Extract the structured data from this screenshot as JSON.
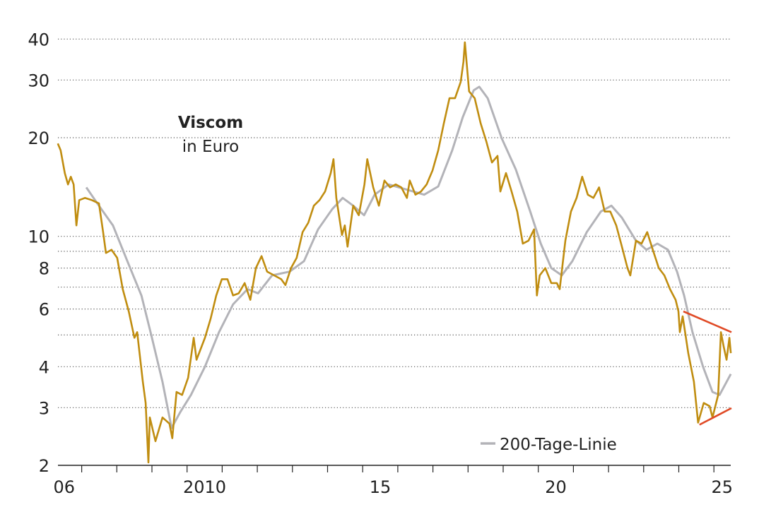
{
  "chart_data": {
    "type": "line",
    "title": "Viscom",
    "subtitle": "in Euro",
    "y_scale": "log",
    "ylim": [
      2,
      42
    ],
    "xlim": [
      2006.32,
      2025.5
    ],
    "y_ticks": [
      {
        "value": 40,
        "label": "40"
      },
      {
        "value": 30,
        "label": "30"
      },
      {
        "value": 20,
        "label": "20"
      },
      {
        "value": 10,
        "label": "10"
      },
      {
        "value": 9,
        "label": ""
      },
      {
        "value": 8,
        "label": "8"
      },
      {
        "value": 7,
        "label": ""
      },
      {
        "value": 6,
        "label": "6"
      },
      {
        "value": 5,
        "label": ""
      },
      {
        "value": 4,
        "label": "4"
      },
      {
        "value": 3,
        "label": "3"
      },
      {
        "value": 2,
        "label": "2"
      }
    ],
    "x_ticks": [
      2007,
      2008,
      2009,
      2010,
      2011,
      2012,
      2013,
      2014,
      2015,
      2016,
      2017,
      2018,
      2019,
      2020,
      2021,
      2022,
      2023,
      2024,
      2025
    ],
    "x_labels": [
      {
        "year": 2006,
        "label": "06"
      },
      {
        "year": 2010,
        "label": "2010"
      },
      {
        "year": 2015,
        "label": "15"
      },
      {
        "year": 2020,
        "label": "20"
      },
      {
        "year": 2025,
        "label": "25"
      }
    ],
    "grid": "horizontal-dotted",
    "legend": {
      "position": "bottom-right",
      "entries": [
        {
          "label": "200-Tage-Linie",
          "series": "ma200"
        }
      ]
    },
    "colors": {
      "price": "#c08d10",
      "ma200": "#b3b3b8",
      "trend": "#e04a26",
      "grid": "#555555",
      "axis": "#222222"
    },
    "series": [
      {
        "name": "price",
        "points": [
          [
            2006.32,
            19.2
          ],
          [
            2006.4,
            18.3
          ],
          [
            2006.52,
            15.6
          ],
          [
            2006.61,
            14.4
          ],
          [
            2006.69,
            15.2
          ],
          [
            2006.77,
            14.4
          ],
          [
            2006.85,
            10.8
          ],
          [
            2006.93,
            12.9
          ],
          [
            2007.09,
            13.1
          ],
          [
            2007.29,
            12.9
          ],
          [
            2007.49,
            12.6
          ],
          [
            2007.61,
            10.3
          ],
          [
            2007.69,
            8.9
          ],
          [
            2007.85,
            9.1
          ],
          [
            2008.01,
            8.6
          ],
          [
            2008.17,
            6.9
          ],
          [
            2008.34,
            5.9
          ],
          [
            2008.5,
            4.9
          ],
          [
            2008.58,
            5.1
          ],
          [
            2008.74,
            3.6
          ],
          [
            2008.82,
            3.1
          ],
          [
            2008.9,
            2.04
          ],
          [
            2008.94,
            2.8
          ],
          [
            2009.1,
            2.37
          ],
          [
            2009.3,
            2.8
          ],
          [
            2009.5,
            2.68
          ],
          [
            2009.58,
            2.42
          ],
          [
            2009.7,
            3.35
          ],
          [
            2009.86,
            3.28
          ],
          [
            2010.03,
            3.7
          ],
          [
            2010.19,
            4.9
          ],
          [
            2010.27,
            4.2
          ],
          [
            2010.51,
            4.9
          ],
          [
            2010.67,
            5.6
          ],
          [
            2010.83,
            6.6
          ],
          [
            2010.99,
            7.4
          ],
          [
            2011.15,
            7.4
          ],
          [
            2011.31,
            6.6
          ],
          [
            2011.47,
            6.7
          ],
          [
            2011.64,
            7.2
          ],
          [
            2011.8,
            6.4
          ],
          [
            2011.96,
            8.0
          ],
          [
            2012.12,
            8.7
          ],
          [
            2012.28,
            7.8
          ],
          [
            2012.48,
            7.6
          ],
          [
            2012.68,
            7.4
          ],
          [
            2012.8,
            7.1
          ],
          [
            2012.96,
            8.0
          ],
          [
            2013.12,
            8.6
          ],
          [
            2013.29,
            10.3
          ],
          [
            2013.45,
            11.0
          ],
          [
            2013.61,
            12.4
          ],
          [
            2013.77,
            12.9
          ],
          [
            2013.93,
            13.7
          ],
          [
            2014.09,
            15.6
          ],
          [
            2014.17,
            17.2
          ],
          [
            2014.25,
            13.1
          ],
          [
            2014.41,
            10.1
          ],
          [
            2014.49,
            10.8
          ],
          [
            2014.57,
            9.3
          ],
          [
            2014.73,
            12.4
          ],
          [
            2014.89,
            11.6
          ],
          [
            2015.05,
            14.4
          ],
          [
            2015.13,
            17.2
          ],
          [
            2015.3,
            14.1
          ],
          [
            2015.46,
            12.4
          ],
          [
            2015.62,
            14.8
          ],
          [
            2015.78,
            14.1
          ],
          [
            2015.94,
            14.4
          ],
          [
            2016.1,
            14.1
          ],
          [
            2016.26,
            13.1
          ],
          [
            2016.34,
            14.8
          ],
          [
            2016.5,
            13.4
          ],
          [
            2016.66,
            13.7
          ],
          [
            2016.82,
            14.4
          ],
          [
            2016.99,
            15.9
          ],
          [
            2017.15,
            18.3
          ],
          [
            2017.31,
            22.1
          ],
          [
            2017.47,
            26.4
          ],
          [
            2017.63,
            26.4
          ],
          [
            2017.79,
            29.6
          ],
          [
            2017.87,
            34.1
          ],
          [
            2017.91,
            39.1
          ],
          [
            2018.03,
            27.7
          ],
          [
            2018.19,
            26.4
          ],
          [
            2018.36,
            22.1
          ],
          [
            2018.52,
            19.5
          ],
          [
            2018.68,
            16.8
          ],
          [
            2018.84,
            17.6
          ],
          [
            2018.92,
            13.7
          ],
          [
            2019.08,
            15.6
          ],
          [
            2019.24,
            13.7
          ],
          [
            2019.4,
            11.9
          ],
          [
            2019.56,
            9.5
          ],
          [
            2019.72,
            9.7
          ],
          [
            2019.88,
            10.5
          ],
          [
            2019.96,
            6.6
          ],
          [
            2020.04,
            7.6
          ],
          [
            2020.2,
            8.0
          ],
          [
            2020.37,
            7.2
          ],
          [
            2020.53,
            7.2
          ],
          [
            2020.61,
            6.9
          ],
          [
            2020.77,
            9.7
          ],
          [
            2020.93,
            11.9
          ],
          [
            2021.09,
            13.1
          ],
          [
            2021.25,
            15.2
          ],
          [
            2021.41,
            13.4
          ],
          [
            2021.57,
            13.1
          ],
          [
            2021.73,
            14.1
          ],
          [
            2021.89,
            11.9
          ],
          [
            2022.05,
            11.9
          ],
          [
            2022.22,
            10.8
          ],
          [
            2022.38,
            9.3
          ],
          [
            2022.54,
            8.0
          ],
          [
            2022.62,
            7.6
          ],
          [
            2022.78,
            9.7
          ],
          [
            2022.94,
            9.5
          ],
          [
            2023.1,
            10.3
          ],
          [
            2023.26,
            9.1
          ],
          [
            2023.43,
            8.0
          ],
          [
            2023.59,
            7.6
          ],
          [
            2023.75,
            6.9
          ],
          [
            2023.91,
            6.4
          ],
          [
            2023.99,
            5.9
          ],
          [
            2024.03,
            5.1
          ],
          [
            2024.11,
            5.7
          ],
          [
            2024.27,
            4.4
          ],
          [
            2024.43,
            3.6
          ],
          [
            2024.55,
            2.7
          ],
          [
            2024.71,
            3.1
          ],
          [
            2024.88,
            3.03
          ],
          [
            2024.96,
            2.8
          ],
          [
            2025.12,
            3.28
          ],
          [
            2025.2,
            5.1
          ],
          [
            2025.28,
            4.6
          ],
          [
            2025.36,
            4.2
          ],
          [
            2025.44,
            4.9
          ],
          [
            2025.48,
            4.4
          ]
        ]
      },
      {
        "name": "ma200",
        "label": "200-Tage-Linie",
        "points": [
          [
            2007.13,
            14.1
          ],
          [
            2007.49,
            12.4
          ],
          [
            2007.89,
            10.8
          ],
          [
            2008.3,
            8.4
          ],
          [
            2008.7,
            6.6
          ],
          [
            2009.0,
            4.9
          ],
          [
            2009.3,
            3.6
          ],
          [
            2009.56,
            2.6
          ],
          [
            2009.8,
            2.9
          ],
          [
            2010.11,
            3.28
          ],
          [
            2010.51,
            4.0
          ],
          [
            2010.91,
            5.1
          ],
          [
            2011.31,
            6.2
          ],
          [
            2011.72,
            6.9
          ],
          [
            2012.02,
            6.7
          ],
          [
            2012.42,
            7.6
          ],
          [
            2012.92,
            7.8
          ],
          [
            2013.33,
            8.4
          ],
          [
            2013.73,
            10.5
          ],
          [
            2014.13,
            12.1
          ],
          [
            2014.43,
            13.1
          ],
          [
            2014.73,
            12.4
          ],
          [
            2015.04,
            11.6
          ],
          [
            2015.34,
            13.4
          ],
          [
            2015.74,
            14.4
          ],
          [
            2016.24,
            13.9
          ],
          [
            2016.75,
            13.4
          ],
          [
            2017.15,
            14.2
          ],
          [
            2017.55,
            18.3
          ],
          [
            2017.85,
            23.1
          ],
          [
            2018.16,
            27.9
          ],
          [
            2018.32,
            28.6
          ],
          [
            2018.56,
            26.4
          ],
          [
            2018.96,
            19.9
          ],
          [
            2019.36,
            16.0
          ],
          [
            2019.77,
            11.9
          ],
          [
            2020.07,
            9.5
          ],
          [
            2020.37,
            8.0
          ],
          [
            2020.67,
            7.6
          ],
          [
            2020.97,
            8.4
          ],
          [
            2021.38,
            10.3
          ],
          [
            2021.78,
            11.9
          ],
          [
            2022.08,
            12.4
          ],
          [
            2022.38,
            11.4
          ],
          [
            2022.78,
            9.7
          ],
          [
            2023.08,
            9.1
          ],
          [
            2023.39,
            9.5
          ],
          [
            2023.69,
            9.1
          ],
          [
            2023.95,
            7.8
          ],
          [
            2024.15,
            6.6
          ],
          [
            2024.39,
            5.1
          ],
          [
            2024.69,
            4.0
          ],
          [
            2024.96,
            3.35
          ],
          [
            2025.16,
            3.28
          ],
          [
            2025.48,
            3.8
          ]
        ]
      }
    ],
    "trendlines": [
      {
        "name": "upper-trendline",
        "points": [
          [
            2024.13,
            5.9
          ],
          [
            2025.5,
            5.1
          ]
        ]
      },
      {
        "name": "lower-trendline",
        "points": [
          [
            2024.59,
            2.66
          ],
          [
            2025.5,
            2.99
          ]
        ]
      }
    ]
  }
}
